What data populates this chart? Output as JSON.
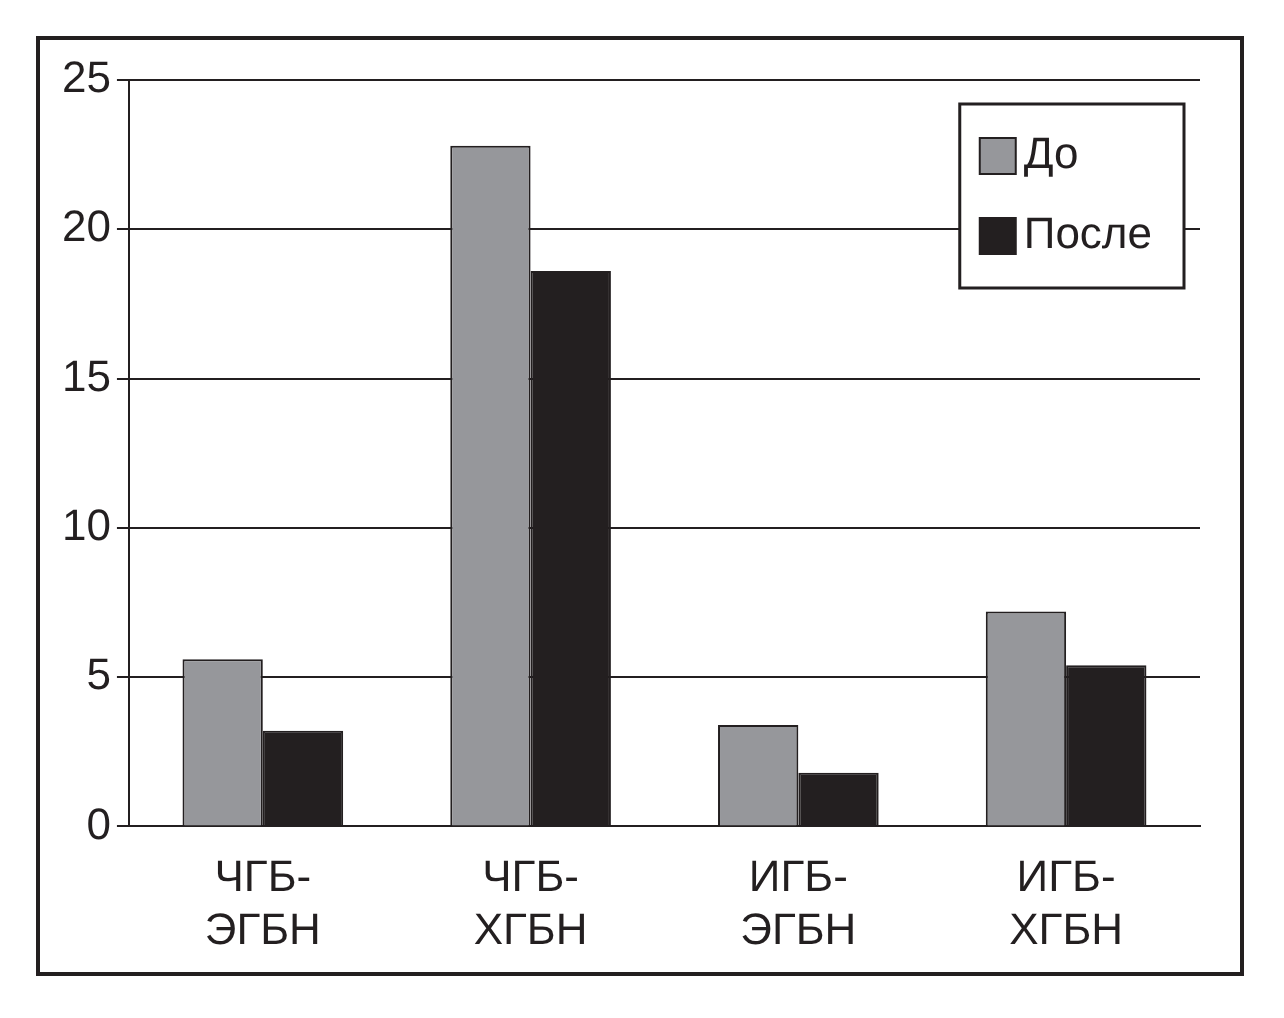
{
  "chart_data": {
    "type": "bar",
    "categories": [
      "ЧГБ-ЭГБН",
      "ЧГБ-ХГБН",
      "ИГБ-ЭГБН",
      "ИГБ-ХГБН"
    ],
    "series": [
      {
        "name": "До",
        "color": "#96979b",
        "values": [
          5.6,
          22.8,
          3.4,
          7.2
        ]
      },
      {
        "name": "После",
        "color": "#231f20",
        "values": [
          3.2,
          18.6,
          1.8,
          5.4
        ]
      }
    ],
    "ylim": [
      0,
      25
    ],
    "yticks": [
      0,
      5,
      10,
      15,
      20,
      25
    ],
    "grid": "y",
    "legend": "top right"
  }
}
